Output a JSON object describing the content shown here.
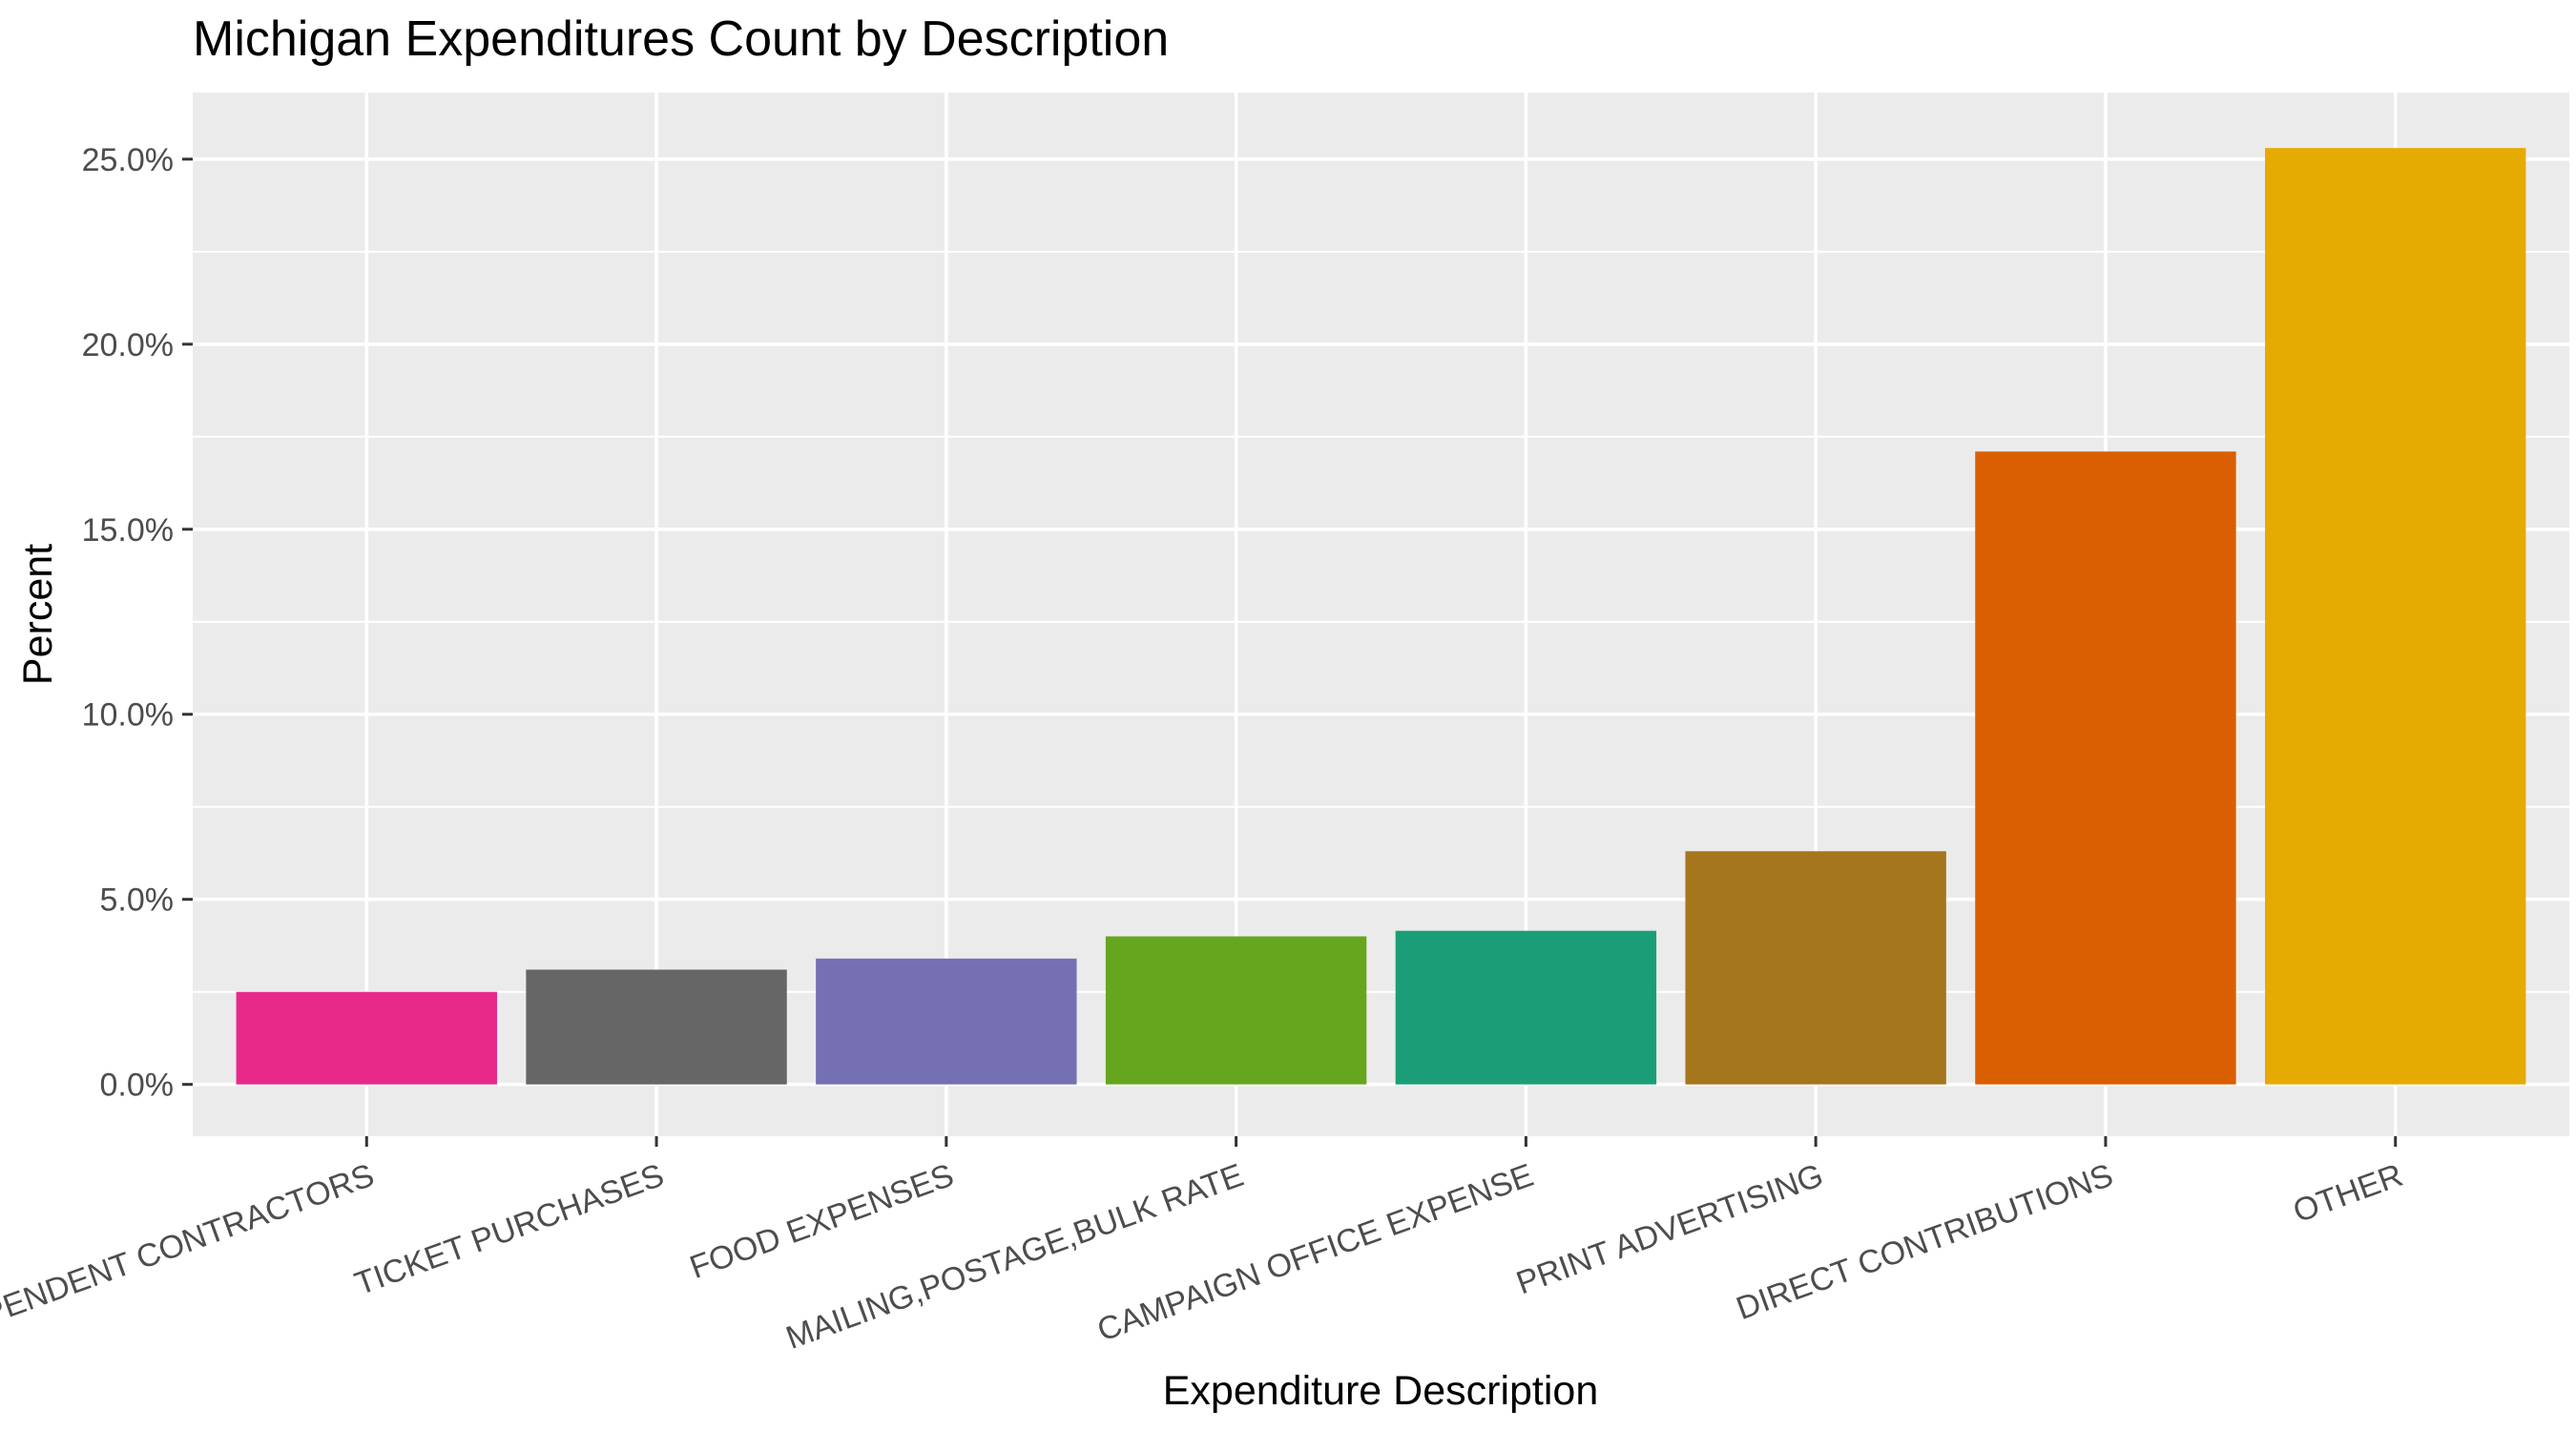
{
  "chart_data": {
    "type": "bar",
    "title": "Michigan Expenditures Count by Description",
    "xlabel": "Expenditure Description",
    "ylabel": "Percent",
    "categories": [
      "INDEPENDENT CONTRACTORS",
      "TICKET PURCHASES",
      "FOOD EXPENSES",
      "MAILING,POSTAGE,BULK RATE",
      "CAMPAIGN OFFICE EXPENSE",
      "PRINT ADVERTISING",
      "DIRECT CONTRIBUTIONS",
      "OTHER"
    ],
    "values": [
      2.5,
      3.1,
      3.4,
      4.0,
      4.15,
      6.3,
      17.1,
      25.3
    ],
    "colors": [
      "#E7298A",
      "#666666",
      "#7570B3",
      "#66A61E",
      "#1B9E77",
      "#A6761D",
      "#D95F02",
      "#E6AB02"
    ],
    "ylim": [
      -1.4,
      26.8
    ],
    "yticks": [
      0,
      5,
      10,
      15,
      20,
      25
    ],
    "ytick_labels": [
      "0.0%",
      "5.0%",
      "10.0%",
      "15.0%",
      "20.0%",
      "25.0%"
    ],
    "grid": true,
    "legend": "none",
    "panel_background": "#EBEBEB",
    "grid_color": "#FFFFFF"
  }
}
